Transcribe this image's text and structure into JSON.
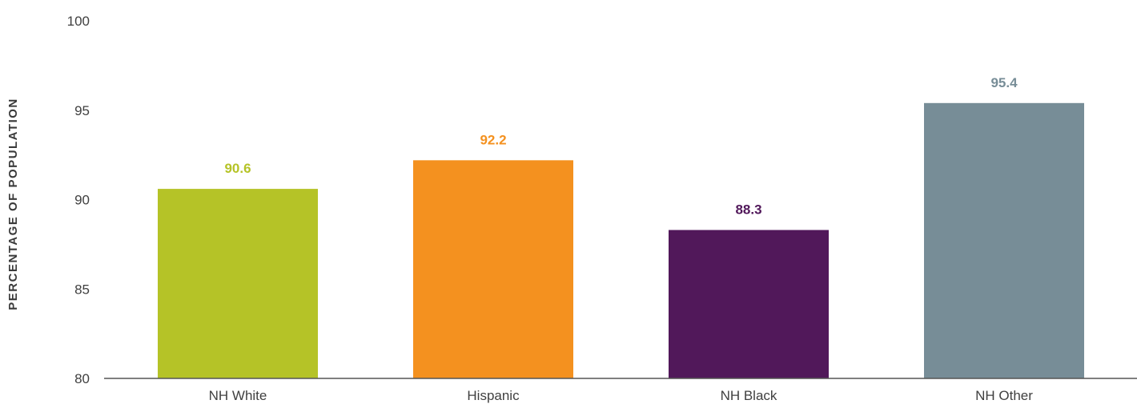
{
  "chart_data": {
    "type": "bar",
    "categories": [
      "NH White",
      "Hispanic",
      "NH Black",
      "NH Other"
    ],
    "values": [
      90.6,
      92.2,
      88.3,
      95.4
    ],
    "value_labels": [
      "90.6",
      "92.2",
      "88.3",
      "95.4"
    ],
    "colors": [
      "#b5c327",
      "#f4911f",
      "#51185a",
      "#778d97"
    ],
    "title": "",
    "xlabel": "",
    "ylabel": "PERCENTAGE OF POPULATION",
    "ylim": [
      80,
      100
    ],
    "yticks": [
      80,
      85,
      90,
      95,
      100
    ],
    "ytick_labels": [
      "80",
      "85",
      "90",
      "95",
      "100"
    ],
    "grid": false,
    "legend": "none"
  }
}
